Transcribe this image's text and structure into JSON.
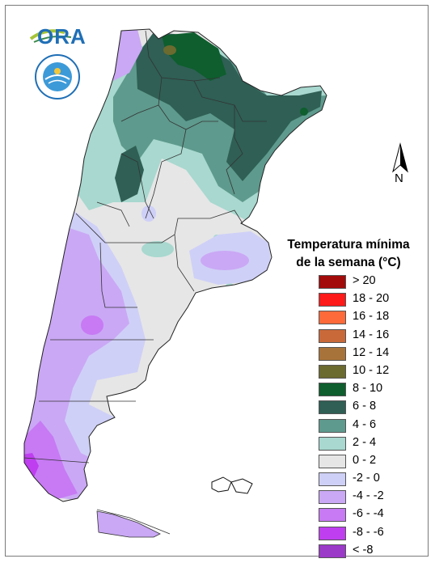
{
  "logo": {
    "ora_text": "ORA"
  },
  "north_arrow": {
    "label": "N"
  },
  "legend": {
    "title_line1": "Temperatura mínima",
    "title_line2": "de la semana (°C)",
    "items": [
      {
        "label": "> 20",
        "color": "#a30a0a"
      },
      {
        "label": "18 - 20",
        "color": "#ff1a1a"
      },
      {
        "label": "16 - 18",
        "color": "#ff6a3a"
      },
      {
        "label": "14 - 16",
        "color": "#c9693a"
      },
      {
        "label": "12 - 14",
        "color": "#a8733a"
      },
      {
        "label": "10 - 12",
        "color": "#6b6a2f"
      },
      {
        "label": "8 - 10",
        "color": "#0e5e2e"
      },
      {
        "label": "6 - 8",
        "color": "#2f5f55"
      },
      {
        "label": "4 - 6",
        "color": "#5e9a8d"
      },
      {
        "label": "2 - 4",
        "color": "#a8d8cf"
      },
      {
        "label": "0 - 2",
        "color": "#e6e6e6"
      },
      {
        "label": "-2 - 0",
        "color": "#cfd0f7"
      },
      {
        "label": "-4 - -2",
        "color": "#caa8f5"
      },
      {
        "label": "-6 - -4",
        "color": "#c77af4"
      },
      {
        "label": "-8 - -6",
        "color": "#bf3ef0"
      },
      {
        "label": "< -8",
        "color": "#9b39c9"
      }
    ]
  }
}
